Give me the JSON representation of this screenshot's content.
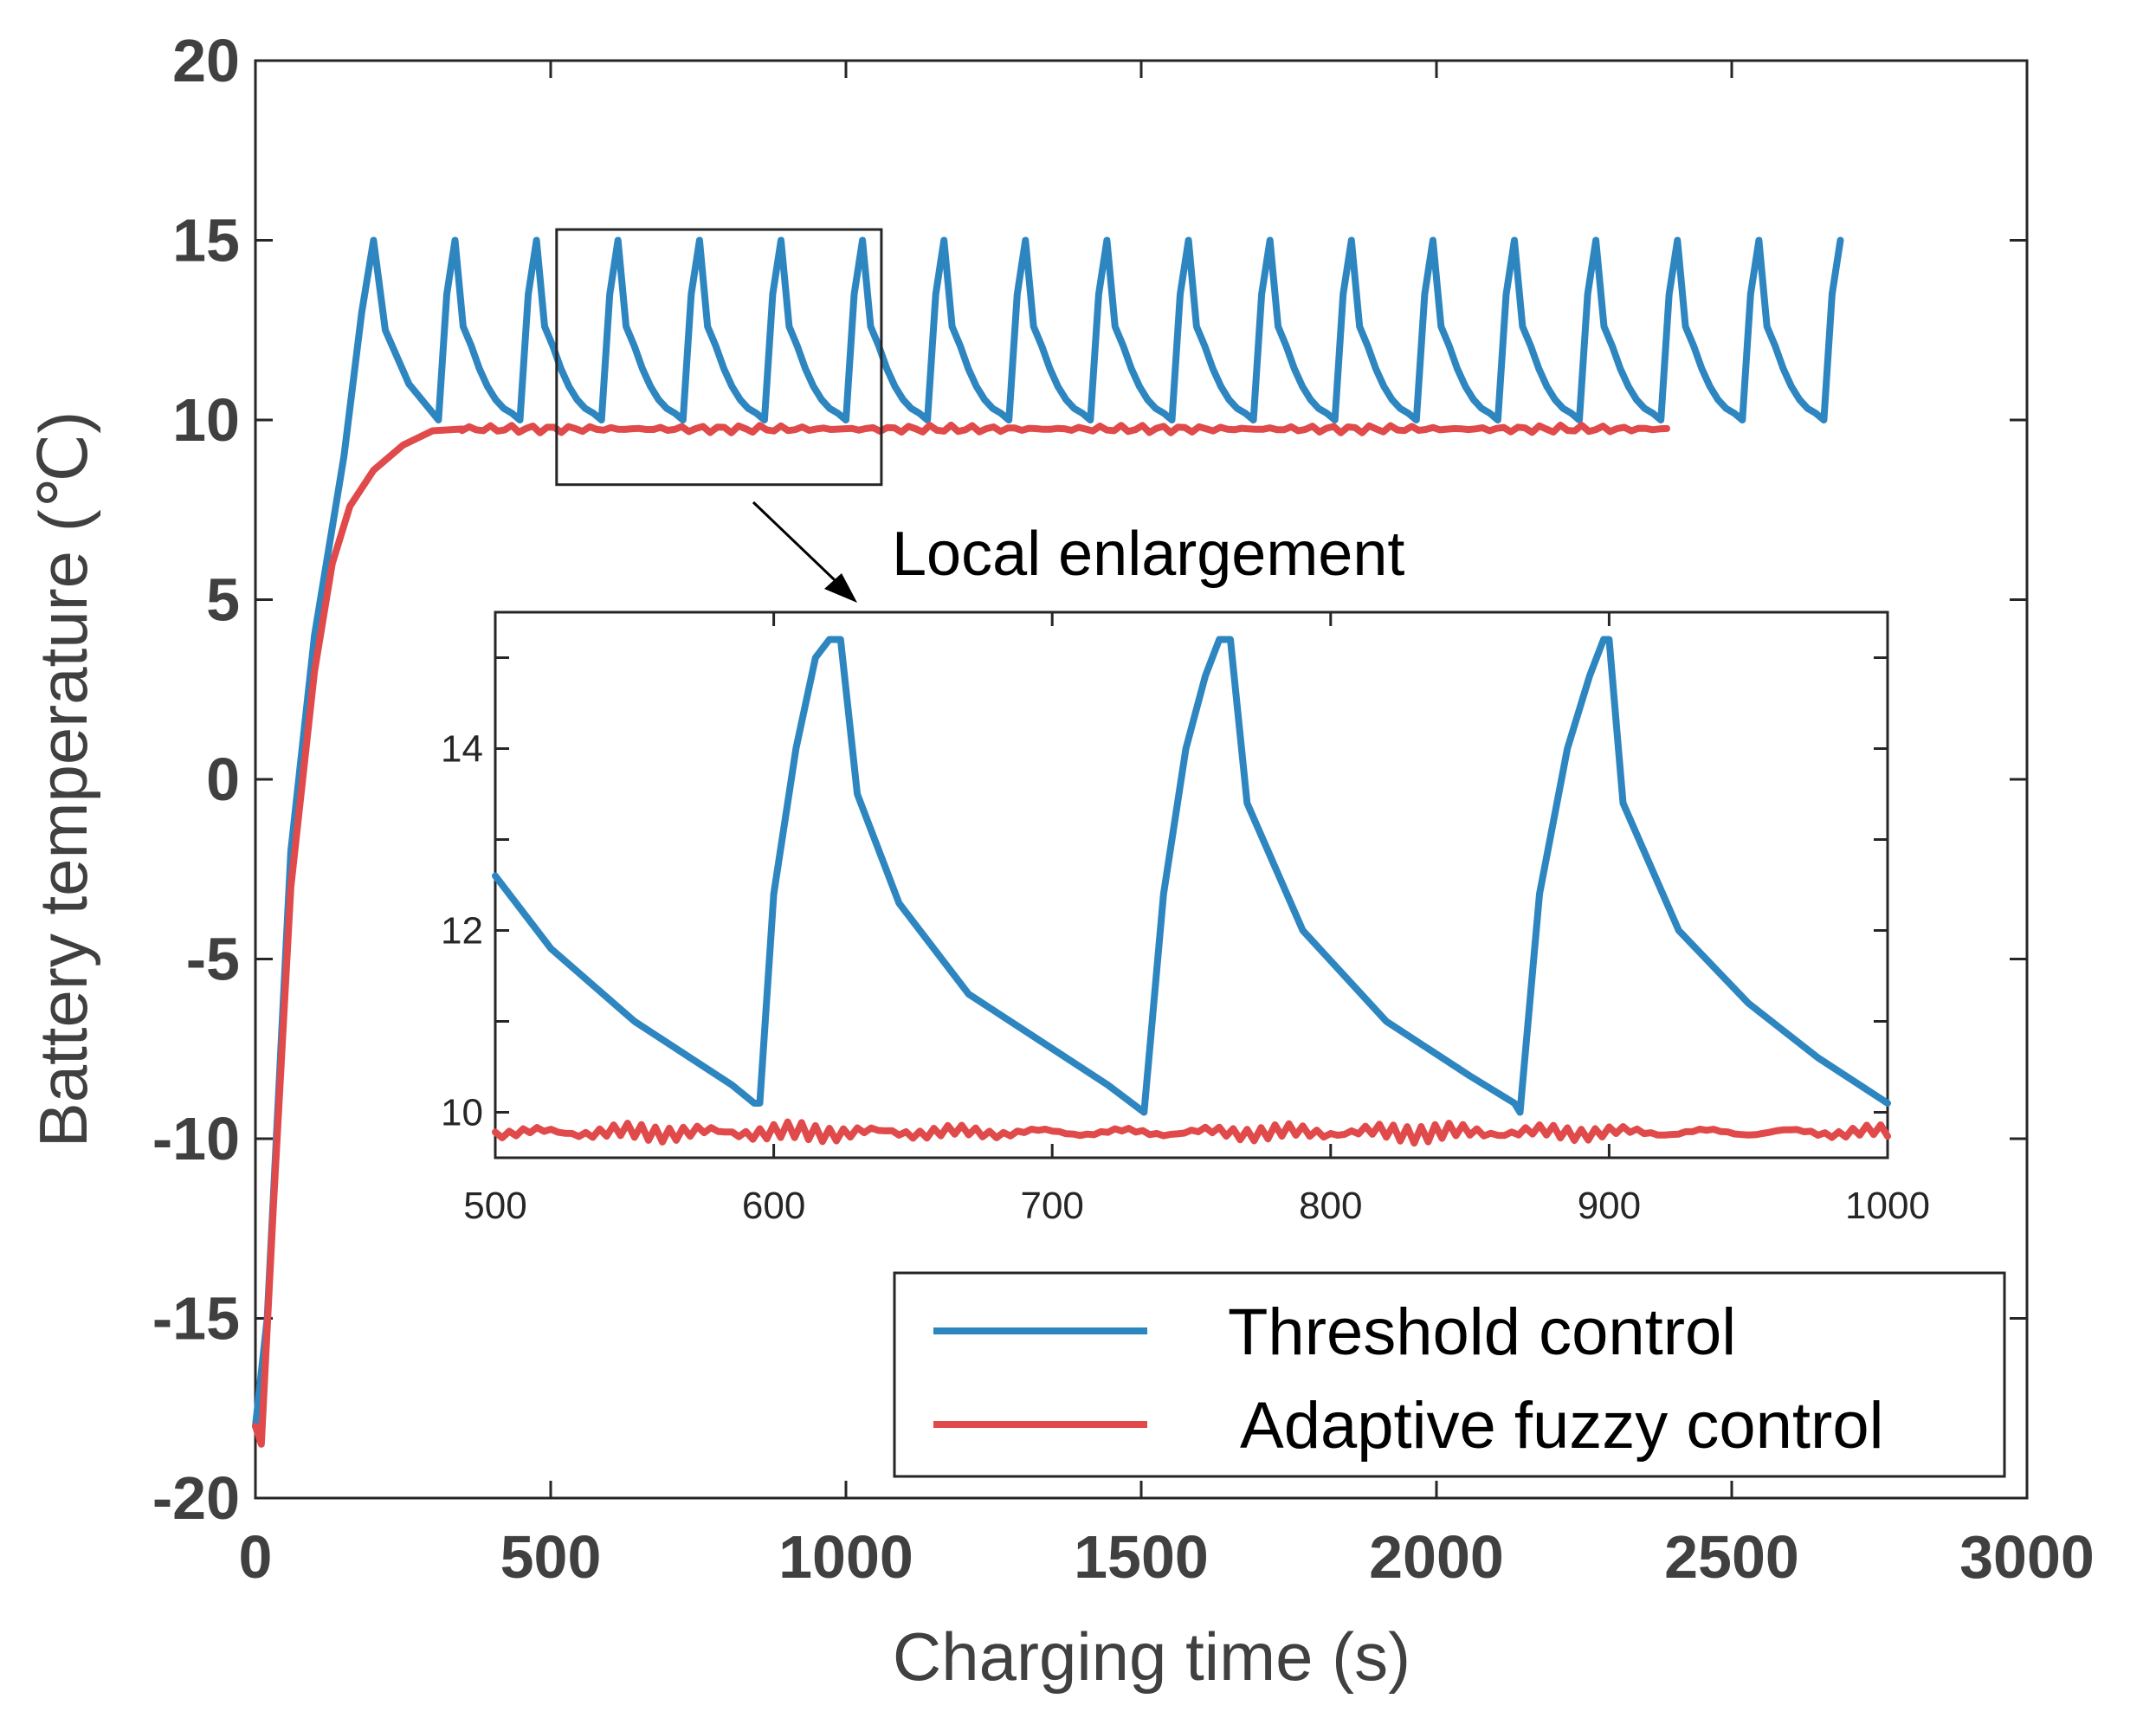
{
  "chart_data": {
    "type": "line",
    "xlabel": "Charging time (s)",
    "ylabel": "Battery temperature (℃)",
    "xlim": [
      0,
      3000
    ],
    "ylim": [
      -20,
      20
    ],
    "xticks": [
      "0",
      "500",
      "1000",
      "1500",
      "2000",
      "2500",
      "3000"
    ],
    "yticks": [
      "20",
      "15",
      "10",
      "5",
      "0",
      "-5",
      "-10",
      "-15",
      "-20"
    ],
    "series": [
      {
        "name": "Threshold control",
        "color": "#2E86C1",
        "points": [
          [
            0,
            -18
          ],
          [
            20,
            -15
          ],
          [
            60,
            -2
          ],
          [
            100,
            4
          ],
          [
            150,
            9
          ],
          [
            180,
            13
          ],
          [
            200,
            15
          ],
          [
            220,
            12.5
          ],
          [
            260,
            11
          ],
          [
            310,
            10
          ]
        ],
        "pulse_period_s": 138,
        "pulse_start_s": 310,
        "pulse_rise_s": 28,
        "pulse_low": 10,
        "pulse_high": 15,
        "end_s": 2660
      },
      {
        "name": "Adaptive fuzzy control",
        "color": "#E04A4A",
        "points": [
          [
            0,
            -18
          ],
          [
            10,
            -18.5
          ],
          [
            30,
            -12
          ],
          [
            60,
            -3
          ],
          [
            100,
            3
          ],
          [
            130,
            6
          ],
          [
            160,
            7.6
          ],
          [
            200,
            8.6
          ],
          [
            250,
            9.3
          ],
          [
            300,
            9.7
          ],
          [
            350,
            9.75
          ],
          [
            2400,
            9.75
          ]
        ]
      }
    ],
    "annotation": "Local enlargement",
    "zoom_box": {
      "xlim": [
        510,
        1060
      ],
      "ylim": [
        8.2,
        15.3
      ]
    },
    "inset": {
      "xlim": [
        500,
        1000
      ],
      "ylim": [
        9.5,
        15.5
      ],
      "xticks": [
        "500",
        "600",
        "700",
        "800",
        "900",
        "1000"
      ],
      "yticks": [
        "14",
        "12",
        "10"
      ],
      "threshold_points": [
        [
          500,
          12.6
        ],
        [
          520,
          11.8
        ],
        [
          550,
          11.0
        ],
        [
          570,
          10.6
        ],
        [
          585,
          10.3
        ],
        [
          593,
          10.1
        ],
        [
          595,
          10.1
        ],
        [
          600,
          12.4
        ],
        [
          608,
          14.0
        ],
        [
          615,
          15.0
        ],
        [
          620,
          15.2
        ],
        [
          624,
          15.2
        ],
        [
          630,
          13.5
        ],
        [
          645,
          12.3
        ],
        [
          670,
          11.3
        ],
        [
          700,
          10.7
        ],
        [
          720,
          10.3
        ],
        [
          733,
          10.0
        ],
        [
          740,
          12.4
        ],
        [
          748,
          14.0
        ],
        [
          755,
          14.8
        ],
        [
          760,
          15.2
        ],
        [
          764,
          15.2
        ],
        [
          770,
          13.4
        ],
        [
          790,
          12.0
        ],
        [
          820,
          11.0
        ],
        [
          850,
          10.4
        ],
        [
          866,
          10.1
        ],
        [
          868,
          10.0
        ],
        [
          875,
          12.4
        ],
        [
          885,
          14.0
        ],
        [
          893,
          14.8
        ],
        [
          898,
          15.2
        ],
        [
          900,
          15.2
        ],
        [
          905,
          13.4
        ],
        [
          925,
          12.0
        ],
        [
          950,
          11.2
        ],
        [
          975,
          10.6
        ],
        [
          1000,
          10.1
        ]
      ],
      "fuzzy_level": 9.78
    },
    "legend": [
      "Threshold control",
      "Adaptive fuzzy control"
    ],
    "legend_location": "lower-right"
  }
}
